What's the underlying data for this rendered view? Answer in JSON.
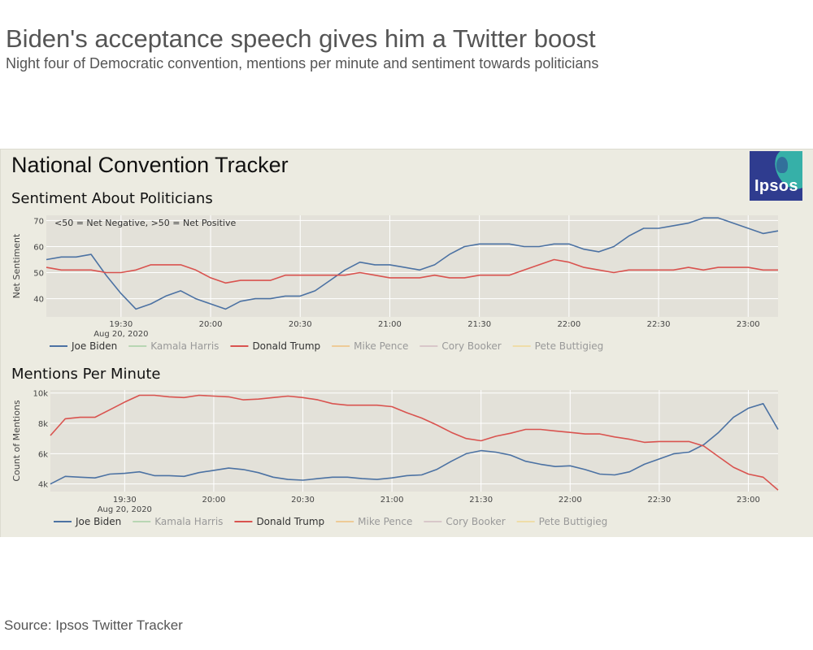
{
  "header": {
    "title": "Biden's acceptance speech gives him a Twitter boost",
    "subtitle": "Night four of Democratic convention, mentions per minute and sentiment towards politicians"
  },
  "dashboard": {
    "title": "National Convention Tracker",
    "logo_text": "Ipsos"
  },
  "footer": {
    "source": "Source: Ipsos Twitter Tracker"
  },
  "colors": {
    "biden": "#4c72a3",
    "trump": "#d9534f",
    "plot_bg": "#e3e1d9",
    "grid": "#ffffff"
  },
  "legend": [
    {
      "name": "Joe Biden",
      "color": "#4c72a3",
      "active": true
    },
    {
      "name": "Kamala Harris",
      "color": "#8fc58f",
      "active": false
    },
    {
      "name": "Donald Trump",
      "color": "#d9534f",
      "active": true
    },
    {
      "name": "Mike Pence",
      "color": "#f0b25c",
      "active": false
    },
    {
      "name": "Cory Booker",
      "color": "#c9aab7",
      "active": false
    },
    {
      "name": "Pete Buttigieg",
      "color": "#f2d27a",
      "active": false
    }
  ],
  "chart_data": [
    {
      "type": "line",
      "title": "Sentiment About Politicians",
      "ylabel": "Net Sentiment",
      "annotation": "<50 = Net Negative, >50 = Net Positive",
      "x_ticks": [
        "19:30",
        "20:00",
        "20:30",
        "21:00",
        "21:30",
        "22:00",
        "22:30",
        "23:00"
      ],
      "x_date_label": "Aug 20, 2020",
      "x_range": [
        "19:05",
        "23:10"
      ],
      "ylim": [
        33,
        72
      ],
      "y_ticks": [
        40,
        50,
        60,
        70
      ],
      "x": [
        "19:05",
        "19:10",
        "19:15",
        "19:20",
        "19:25",
        "19:30",
        "19:35",
        "19:40",
        "19:45",
        "19:50",
        "19:55",
        "20:00",
        "20:05",
        "20:10",
        "20:15",
        "20:20",
        "20:25",
        "20:30",
        "20:35",
        "20:40",
        "20:45",
        "20:50",
        "20:55",
        "21:00",
        "21:05",
        "21:10",
        "21:15",
        "21:20",
        "21:25",
        "21:30",
        "21:35",
        "21:40",
        "21:45",
        "21:50",
        "21:55",
        "22:00",
        "22:05",
        "22:10",
        "22:15",
        "22:20",
        "22:25",
        "22:30",
        "22:35",
        "22:40",
        "22:45",
        "22:50",
        "22:55",
        "23:00",
        "23:05",
        "23:10"
      ],
      "series": [
        {
          "name": "Joe Biden",
          "values": [
            55,
            56,
            56,
            57,
            49,
            42,
            36,
            38,
            41,
            43,
            40,
            38,
            36,
            39,
            40,
            40,
            41,
            41,
            43,
            47,
            51,
            54,
            53,
            53,
            52,
            51,
            53,
            57,
            60,
            61,
            61,
            61,
            60,
            60,
            61,
            61,
            59,
            58,
            60,
            64,
            67,
            67,
            68,
            69,
            71,
            71,
            69,
            67,
            65,
            66
          ]
        },
        {
          "name": "Donald Trump",
          "values": [
            52,
            51,
            51,
            51,
            50,
            50,
            51,
            53,
            53,
            53,
            51,
            48,
            46,
            47,
            47,
            47,
            49,
            49,
            49,
            49,
            49,
            50,
            49,
            48,
            48,
            48,
            49,
            48,
            48,
            49,
            49,
            49,
            51,
            53,
            55,
            54,
            52,
            51,
            50,
            51,
            51,
            51,
            51,
            52,
            51,
            52,
            52,
            52,
            51,
            51
          ]
        }
      ]
    },
    {
      "type": "line",
      "title": "Mentions Per Minute",
      "ylabel": "Count of Mentions",
      "x_ticks": [
        "19:30",
        "20:00",
        "20:30",
        "21:00",
        "21:30",
        "22:00",
        "22:30",
        "23:00"
      ],
      "x_date_label": "Aug 20, 2020",
      "x_range": [
        "19:05",
        "23:10"
      ],
      "ylim": [
        3500,
        10200
      ],
      "y_ticks": [
        "4k",
        "6k",
        "8k",
        "10k"
      ],
      "x": [
        "19:05",
        "19:10",
        "19:15",
        "19:20",
        "19:25",
        "19:30",
        "19:35",
        "19:40",
        "19:45",
        "19:50",
        "19:55",
        "20:00",
        "20:05",
        "20:10",
        "20:15",
        "20:20",
        "20:25",
        "20:30",
        "20:35",
        "20:40",
        "20:45",
        "20:50",
        "20:55",
        "21:00",
        "21:05",
        "21:10",
        "21:15",
        "21:20",
        "21:25",
        "21:30",
        "21:35",
        "21:40",
        "21:45",
        "21:50",
        "21:55",
        "22:00",
        "22:05",
        "22:10",
        "22:15",
        "22:20",
        "22:25",
        "22:30",
        "22:35",
        "22:40",
        "22:45",
        "22:50",
        "22:55",
        "23:00",
        "23:05",
        "23:10"
      ],
      "series": [
        {
          "name": "Joe Biden",
          "values": [
            4000,
            4500,
            4450,
            4400,
            4650,
            4700,
            4800,
            4550,
            4550,
            4500,
            4750,
            4900,
            5050,
            4950,
            4750,
            4450,
            4300,
            4250,
            4350,
            4450,
            4450,
            4350,
            4300,
            4400,
            4550,
            4600,
            4950,
            5500,
            6000,
            6200,
            6100,
            5900,
            5500,
            5300,
            5150,
            5200,
            4950,
            4650,
            4600,
            4800,
            5300,
            5650,
            6000,
            6100,
            6600,
            7400,
            8400,
            9000,
            9300,
            7600
          ]
        },
        {
          "name": "Donald Trump",
          "values": [
            7200,
            8300,
            8400,
            8400,
            8900,
            9400,
            9850,
            9850,
            9750,
            9700,
            9850,
            9800,
            9750,
            9550,
            9600,
            9700,
            9800,
            9700,
            9550,
            9300,
            9200,
            9200,
            9200,
            9100,
            8700,
            8350,
            7900,
            7400,
            7000,
            6850,
            7150,
            7350,
            7600,
            7600,
            7500,
            7400,
            7300,
            7300,
            7100,
            6950,
            6750,
            6800,
            6800,
            6800,
            6500,
            5800,
            5100,
            4650,
            4450,
            3600
          ]
        }
      ]
    }
  ]
}
